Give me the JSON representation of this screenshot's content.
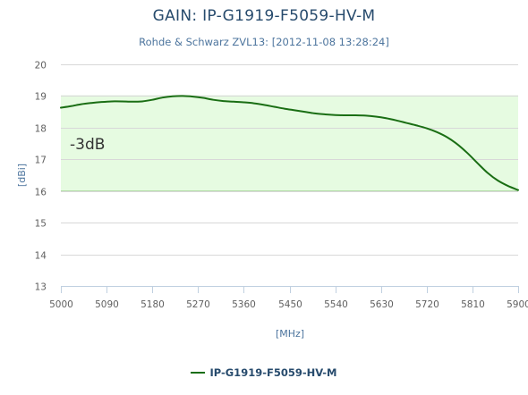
{
  "chart_data": {
    "type": "line",
    "title": "GAIN: IP-G1919-F5059-HV-M",
    "subtitle": "Rohde & Schwarz ZVL13: [2012-11-08 13:28:24]",
    "xlabel": "[MHz]",
    "ylabel": "[dBi]",
    "xlim": [
      5000,
      5900
    ],
    "ylim": [
      13,
      20
    ],
    "x_ticks": [
      "5000",
      "5090",
      "5180",
      "5270",
      "5360",
      "5450",
      "5540",
      "5630",
      "5720",
      "5810",
      "5900"
    ],
    "y_ticks": [
      "13",
      "14",
      "15",
      "16",
      "17",
      "18",
      "19",
      "20"
    ],
    "grid": true,
    "band": {
      "from": 16,
      "to": 19,
      "label": "-3dB",
      "color": "#e6fbe1",
      "edge_color": "#a6d69a"
    },
    "legend_position": "bottom-center",
    "series": [
      {
        "name": "IP-G1919-F5059-HV-M",
        "color": "#1a6e14",
        "x": [
          5000,
          5020,
          5040,
          5060,
          5080,
          5100,
          5120,
          5140,
          5160,
          5180,
          5200,
          5220,
          5240,
          5260,
          5280,
          5300,
          5320,
          5340,
          5360,
          5380,
          5400,
          5420,
          5440,
          5460,
          5480,
          5500,
          5520,
          5540,
          5560,
          5580,
          5600,
          5620,
          5640,
          5660,
          5680,
          5700,
          5720,
          5740,
          5760,
          5780,
          5800,
          5820,
          5840,
          5860,
          5880,
          5900
        ],
        "y": [
          18.63,
          18.68,
          18.74,
          18.78,
          18.81,
          18.83,
          18.83,
          18.82,
          18.83,
          18.88,
          18.95,
          18.99,
          19.0,
          18.98,
          18.94,
          18.88,
          18.84,
          18.82,
          18.8,
          18.77,
          18.72,
          18.66,
          18.6,
          18.55,
          18.5,
          18.45,
          18.42,
          18.4,
          18.39,
          18.39,
          18.38,
          18.35,
          18.3,
          18.23,
          18.15,
          18.07,
          17.98,
          17.86,
          17.7,
          17.48,
          17.2,
          16.88,
          16.57,
          16.33,
          16.16,
          16.03
        ]
      }
    ]
  }
}
